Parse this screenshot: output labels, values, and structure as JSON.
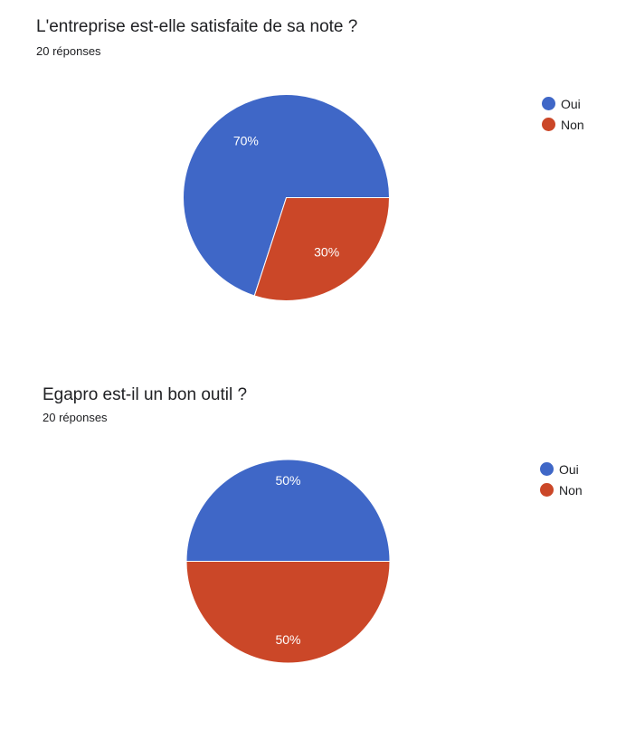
{
  "colors": {
    "oui": "#3f67c7",
    "non": "#cb4728"
  },
  "questions": [
    {
      "title": "L'entreprise est-elle satisfaite de sa note ?",
      "responses": "20 réponses"
    },
    {
      "title": "Egapro est-il un bon outil ?",
      "responses": "20 réponses"
    }
  ],
  "chart_data": [
    {
      "type": "pie",
      "title": "L'entreprise est-elle satisfaite de sa note ?",
      "subtitle": "20 réponses",
      "labels": [
        "Oui",
        "Non"
      ],
      "values": [
        70,
        30
      ],
      "value_labels": [
        "70%",
        "30%"
      ],
      "colors": [
        "#3f67c7",
        "#cb4728"
      ],
      "legend": "right"
    },
    {
      "type": "pie",
      "title": "Egapro est-il un bon outil ?",
      "subtitle": "20 réponses",
      "labels": [
        "Oui",
        "Non"
      ],
      "values": [
        50,
        50
      ],
      "value_labels": [
        "50%",
        "50%"
      ],
      "colors": [
        "#3f67c7",
        "#cb4728"
      ],
      "legend": "right"
    }
  ]
}
